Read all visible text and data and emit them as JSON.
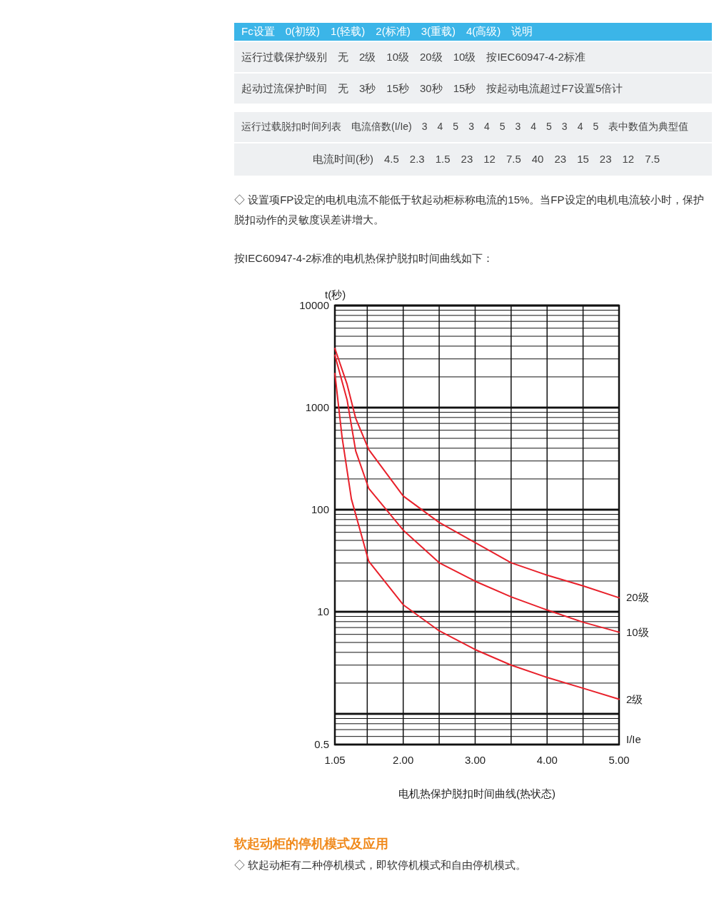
{
  "chart_data": {
    "type": "line",
    "title": "电机热保护脱扣时间曲线(热状态)",
    "xlabel": "I/Ie",
    "ylabel": "t(秒)",
    "log": "y",
    "xlim": [
      1.05,
      5
    ],
    "xticks": [
      {
        "value": 1.05,
        "label": "1.05"
      },
      {
        "value": 1.5,
        "label": null
      },
      {
        "value": 2,
        "label": "2.00"
      },
      {
        "value": 2.5,
        "label": null
      },
      {
        "value": 3,
        "label": "3.00"
      },
      {
        "value": 3.5,
        "label": null
      },
      {
        "value": 4,
        "label": "4.00"
      },
      {
        "value": 4.5,
        "label": null
      },
      {
        "value": 5,
        "label": "5.00"
      }
    ],
    "ylim": [
      0.5,
      10000
    ],
    "yticks": [
      0.5,
      {
        "value": 1,
        "label": null
      },
      10,
      100,
      1000,
      10000
    ],
    "grid": true,
    "marker": "none",
    "line_style": "solid",
    "series": [
      {
        "name": "20级",
        "color": "#e8202a",
        "x": [
          1.05,
          1.22,
          1.34,
          1.52,
          2,
          2.5,
          3,
          3.5,
          4,
          4.5,
          5
        ],
        "values": [
          3800,
          1690,
          783,
          389,
          136,
          75,
          47.6,
          30.2,
          22.8,
          17.9,
          13.7
        ]
      },
      {
        "name": "10级",
        "color": "#e8202a",
        "x": [
          1.05,
          1.22,
          1.34,
          1.52,
          2,
          2.5,
          3,
          3.5,
          4,
          4.5,
          5
        ],
        "values": [
          3260,
          1190,
          375,
          162,
          63,
          30.2,
          19.9,
          14,
          10.4,
          7.9,
          6.3
        ]
      },
      {
        "name": "2级",
        "color": "#e8202a",
        "x": [
          1.05,
          1.15,
          1.28,
          1.52,
          2,
          2.5,
          3,
          3.5,
          4,
          4.5,
          5
        ],
        "values": [
          2160,
          514,
          127,
          31.3,
          11.7,
          6.5,
          4.26,
          3,
          2.27,
          1.78,
          1.39
        ]
      }
    ],
    "annotations": [
      "Fc设置　0(初级)　1(轻载)　2(标准)　3(重载)　4(高级)　说明",
      "运行过载保护级别　无　2级　10级　20级　10级　按IEC60947-4-2标准",
      "起动过流保护时间　无　3秒　15秒　30秒　15秒　按起动电流超过F7设置5倍计",
      "运行过载脱扣时间列表　电流倍数(I/Ie)　3　4　5　3　4　5　3　4　5　3　4　5　表中数值为典型值",
      "电流时间(秒)　4.5　2.3　1.5　23　12　7.5　40　23　15　23　12　7.5",
      "◇ 设置项FP设定的电机电流不能低于软起动柜标称电流的15%。当FP设定的电机电流较小时，保护脱扣动作的灵敏度误差讲增大。",
      "按IEC60947-4-2标准的电机热保护脱扣时间曲线如下：",
      "软起动柜的停机模式及应用",
      "◇ 软起动柜有二种停机模式，即软停机模式和自由停机模式。"
    ]
  }
}
